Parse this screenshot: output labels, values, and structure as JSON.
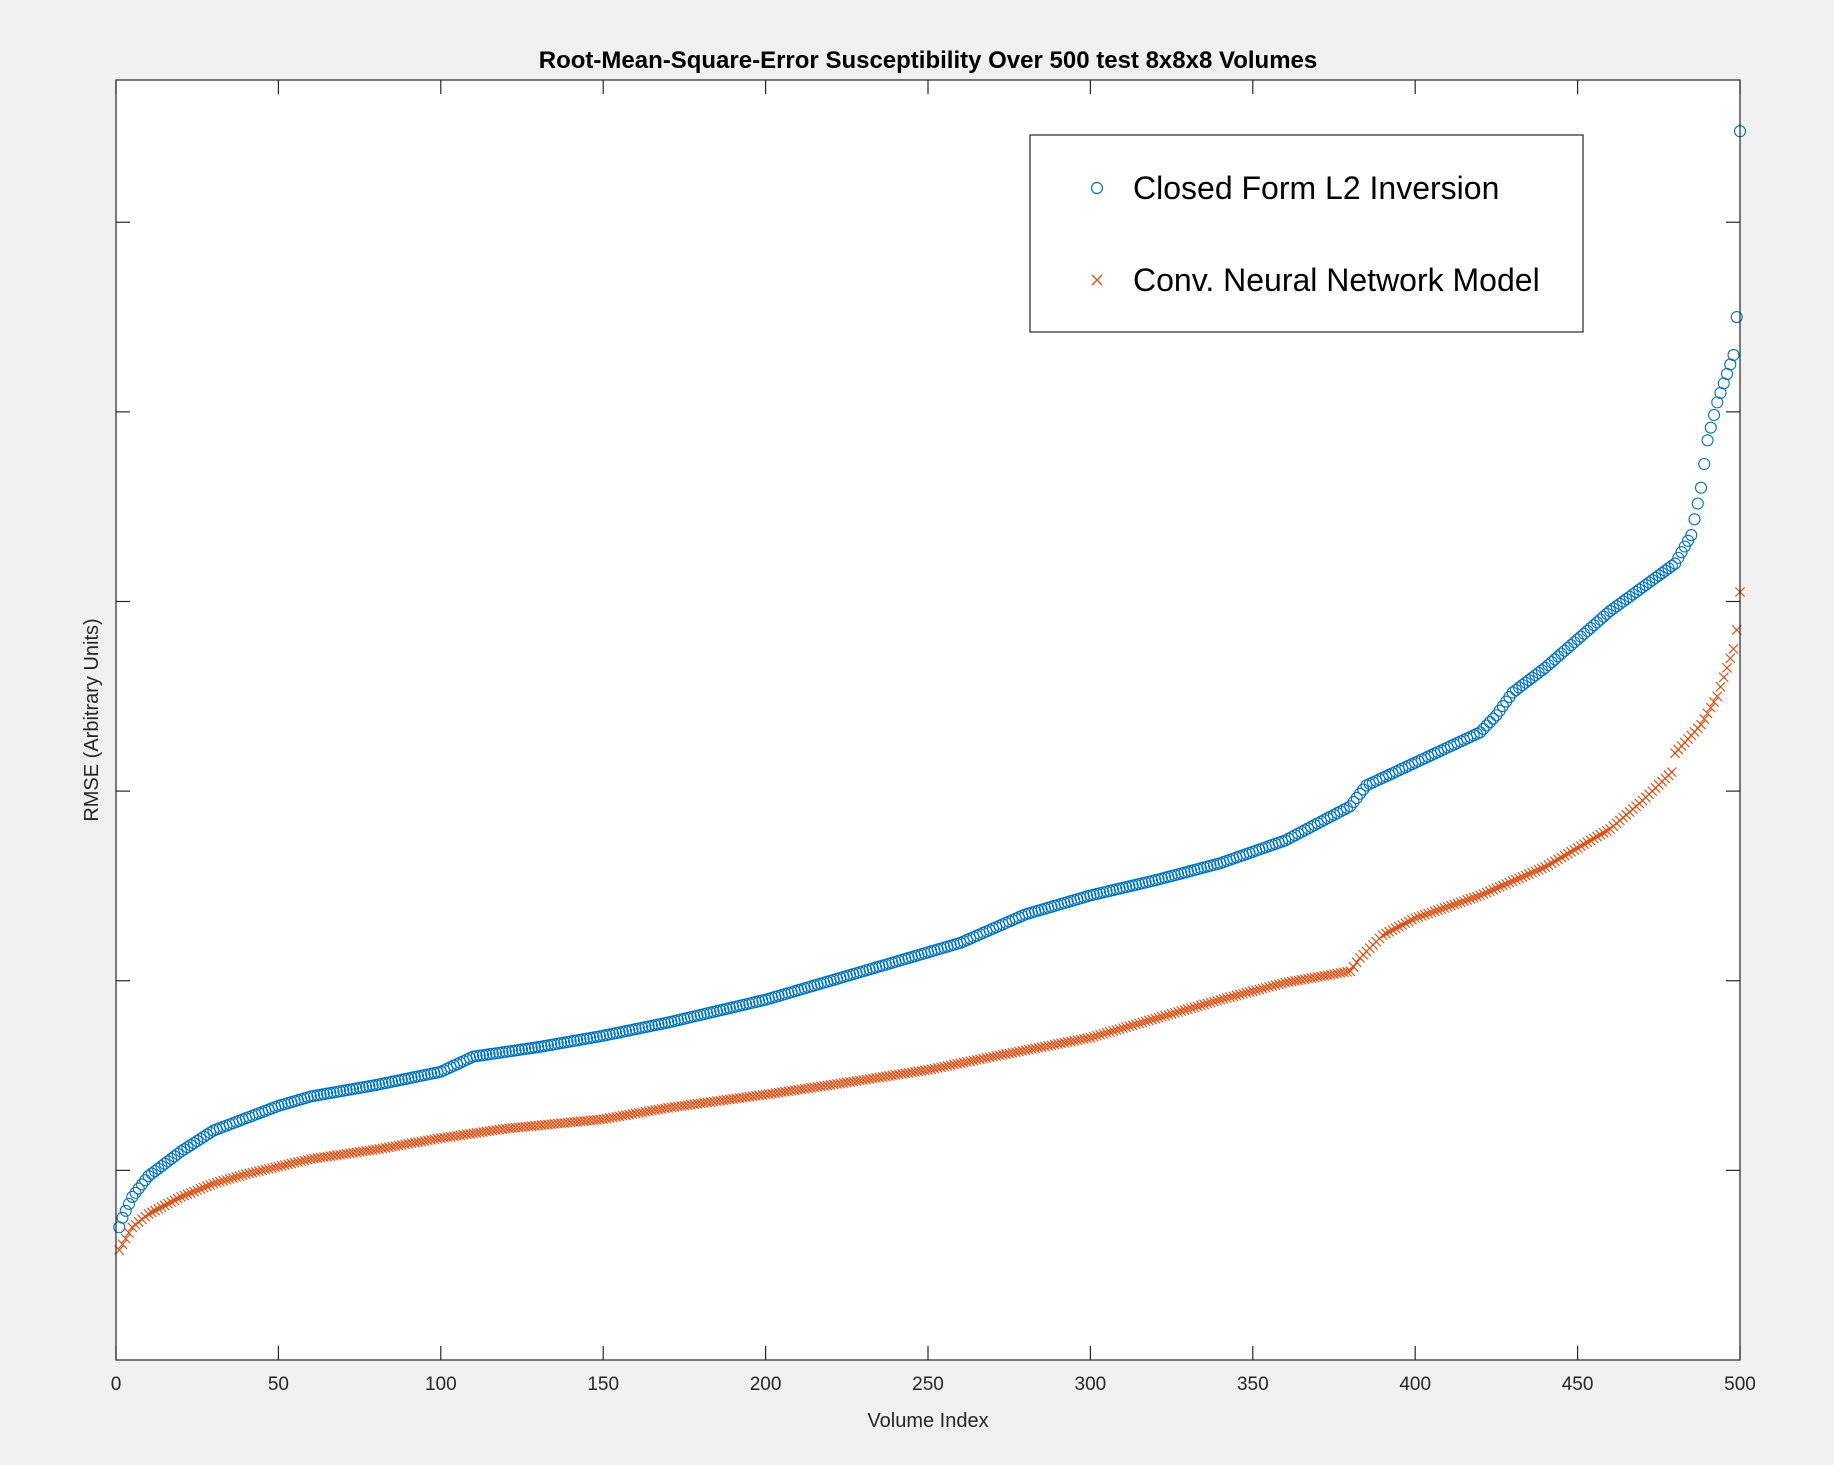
{
  "figure": {
    "background": "#f0f0f0",
    "plot_background": "#ffffff"
  },
  "chart_data": {
    "type": "scatter",
    "title": "Root-Mean-Square-Error Susceptibility Over 500 test 8x8x8 Volumes",
    "xlabel": "Volume Index",
    "ylabel": "RMSE (Arbitrary Units)",
    "xlim": [
      0,
      500
    ],
    "ylim": [
      0,
      6.75
    ],
    "x_ticks": [
      0,
      50,
      100,
      150,
      200,
      250,
      300,
      350,
      400,
      450,
      500
    ],
    "x_tick_labels": [
      "0",
      "50",
      "100",
      "150",
      "200",
      "250",
      "300",
      "350",
      "400",
      "450",
      "500"
    ],
    "y_ticks": [
      1,
      2,
      3,
      4,
      5,
      6
    ],
    "y_tick_labels": [],
    "grid": false,
    "legend_position": "top-right",
    "series": [
      {
        "name": "Closed Form L2 Inversion",
        "marker": "circle",
        "color": "#0072bd",
        "x_range": [
          1,
          500
        ],
        "count": 500,
        "profile": {
          "x": [
            1,
            2,
            5,
            10,
            20,
            30,
            50,
            60,
            80,
            100,
            110,
            130,
            150,
            170,
            200,
            230,
            260,
            280,
            300,
            320,
            340,
            360,
            380,
            385,
            400,
            420,
            425,
            430,
            440,
            460,
            480,
            485,
            488,
            490,
            493,
            496,
            498,
            499,
            500
          ],
          "y": [
            0.7,
            0.75,
            0.86,
            0.97,
            1.1,
            1.21,
            1.34,
            1.39,
            1.45,
            1.52,
            1.6,
            1.65,
            1.71,
            1.78,
            1.9,
            2.05,
            2.2,
            2.35,
            2.45,
            2.53,
            2.62,
            2.74,
            2.92,
            3.03,
            3.15,
            3.31,
            3.4,
            3.52,
            3.65,
            3.95,
            4.2,
            4.35,
            4.6,
            4.85,
            5.05,
            5.2,
            5.3,
            5.5,
            6.48
          ]
        }
      },
      {
        "name": "Conv. Neural Network Model",
        "marker": "x",
        "color": "#d95319",
        "x_range": [
          1,
          500
        ],
        "count": 500,
        "profile": {
          "x": [
            1,
            5,
            10,
            20,
            30,
            40,
            50,
            60,
            80,
            100,
            120,
            150,
            170,
            200,
            220,
            250,
            270,
            300,
            320,
            340,
            360,
            380,
            383,
            390,
            400,
            420,
            440,
            460,
            470,
            479,
            480,
            488,
            493,
            496,
            498,
            499,
            500
          ],
          "y": [
            0.58,
            0.7,
            0.77,
            0.86,
            0.93,
            0.98,
            1.02,
            1.06,
            1.11,
            1.17,
            1.22,
            1.27,
            1.33,
            1.4,
            1.45,
            1.53,
            1.6,
            1.7,
            1.8,
            1.9,
            1.99,
            2.05,
            2.12,
            2.24,
            2.33,
            2.45,
            2.6,
            2.8,
            2.95,
            3.1,
            3.2,
            3.35,
            3.5,
            3.65,
            3.75,
            3.85,
            4.05
          ]
        }
      }
    ]
  }
}
